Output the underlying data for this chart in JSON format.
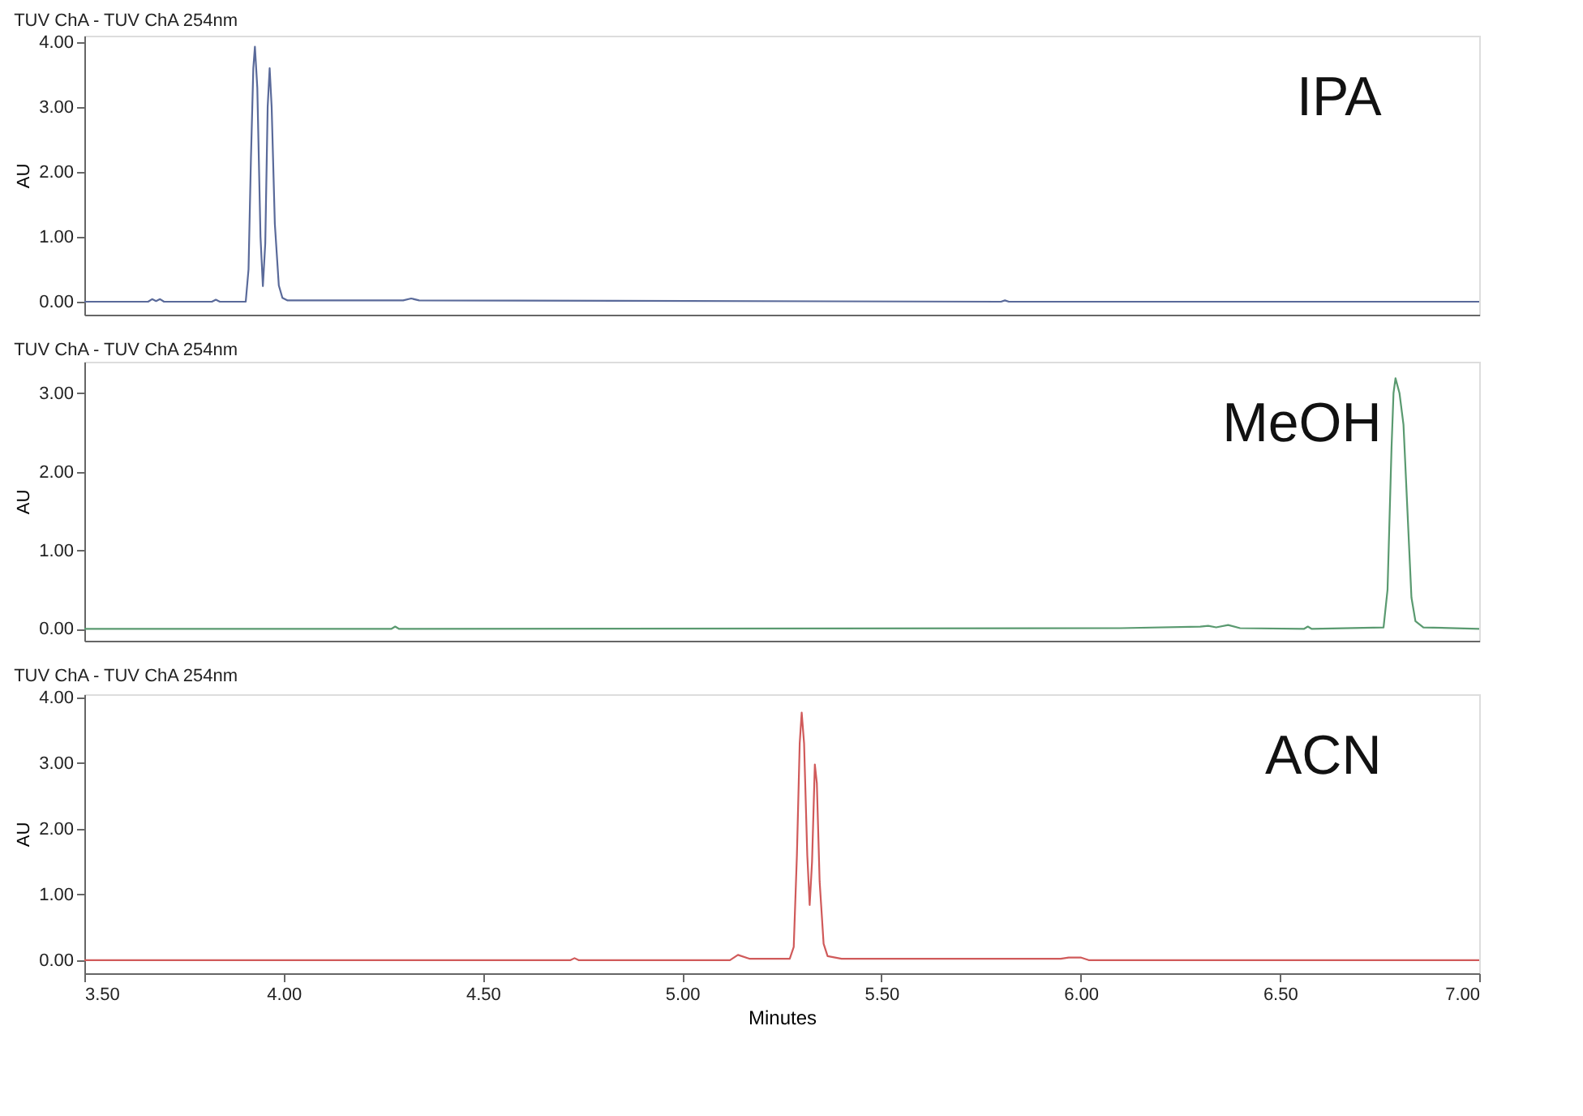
{
  "chart_data": [
    {
      "type": "line",
      "title": "TUV ChA - TUV ChA 254nm",
      "ylabel": "AU",
      "tick_labels": "y",
      "grid": false,
      "marker": "none",
      "line_style": "solid",
      "xlim": [
        3.5,
        7.0
      ],
      "ylim": [
        -0.2,
        4.1
      ],
      "yticks": [
        {
          "value": 0,
          "label": "0.00"
        },
        {
          "value": 1,
          "label": "1.00"
        },
        {
          "value": 2,
          "label": "2.00"
        },
        {
          "value": 3,
          "label": "3.00"
        },
        {
          "value": 4,
          "label": "4.00"
        }
      ],
      "series": [
        {
          "name": "IPA",
          "color": "#5a6a9a",
          "x": [
            3.5,
            3.66,
            3.67,
            3.68,
            3.69,
            3.7,
            3.82,
            3.83,
            3.84,
            3.905,
            3.912,
            3.918,
            3.924,
            3.928,
            3.934,
            3.942,
            3.948,
            3.954,
            3.96,
            3.965,
            3.97,
            3.978,
            3.988,
            3.997,
            4.01,
            4.3,
            4.32,
            4.34,
            5.8,
            5.81,
            5.82,
            7.0
          ],
          "values": [
            0.0,
            0.0,
            0.04,
            0.01,
            0.04,
            0.0,
            0.0,
            0.03,
            0.0,
            0.0,
            0.5,
            2.2,
            3.6,
            3.93,
            3.3,
            1.0,
            0.24,
            0.9,
            3.0,
            3.6,
            3.0,
            1.2,
            0.25,
            0.06,
            0.02,
            0.02,
            0.05,
            0.02,
            0.0,
            0.02,
            0.0,
            0.0
          ]
        }
      ]
    },
    {
      "type": "line",
      "title": "TUV ChA - TUV ChA 254nm",
      "ylabel": "AU",
      "tick_labels": "y",
      "grid": false,
      "marker": "none",
      "line_style": "solid",
      "xlim": [
        3.5,
        7.0
      ],
      "ylim": [
        -0.15,
        3.4
      ],
      "yticks": [
        {
          "value": 0,
          "label": "0.00"
        },
        {
          "value": 1,
          "label": "1.00"
        },
        {
          "value": 2,
          "label": "2.00"
        },
        {
          "value": 3,
          "label": "3.00"
        }
      ],
      "series": [
        {
          "name": "MeOH",
          "color": "#5a9a70",
          "x": [
            3.5,
            4.27,
            4.28,
            4.29,
            6.1,
            6.3,
            6.32,
            6.34,
            6.37,
            6.4,
            6.56,
            6.57,
            6.58,
            6.76,
            6.77,
            6.78,
            6.785,
            6.79,
            6.8,
            6.81,
            6.82,
            6.83,
            6.84,
            6.86,
            7.0
          ],
          "values": [
            0.0,
            0.0,
            0.03,
            0.0,
            0.01,
            0.03,
            0.04,
            0.02,
            0.05,
            0.01,
            0.0,
            0.03,
            0.0,
            0.02,
            0.5,
            2.3,
            3.0,
            3.19,
            3.0,
            2.6,
            1.5,
            0.4,
            0.1,
            0.02,
            0.0
          ]
        }
      ]
    },
    {
      "type": "line",
      "title": "TUV ChA - TUV ChA 254nm",
      "xlabel": "Minutes",
      "ylabel": "AU",
      "grid": false,
      "marker": "none",
      "line_style": "solid",
      "xlim": [
        3.5,
        7.0
      ],
      "ylim": [
        -0.2,
        4.05
      ],
      "xticks": [
        {
          "value": 3.5,
          "label": "3.50"
        },
        {
          "value": 4.0,
          "label": "4.00"
        },
        {
          "value": 4.5,
          "label": "4.50"
        },
        {
          "value": 5.0,
          "label": "5.00"
        },
        {
          "value": 5.5,
          "label": "5.50"
        },
        {
          "value": 6.0,
          "label": "6.00"
        },
        {
          "value": 6.5,
          "label": "6.50"
        },
        {
          "value": 7.0,
          "label": "7.00"
        }
      ],
      "yticks": [
        {
          "value": 0,
          "label": "0.00"
        },
        {
          "value": 1,
          "label": "1.00"
        },
        {
          "value": 2,
          "label": "2.00"
        },
        {
          "value": 3,
          "label": "3.00"
        },
        {
          "value": 4,
          "label": "4.00"
        }
      ],
      "series": [
        {
          "name": "ACN",
          "color": "#d05a5a",
          "x": [
            3.5,
            4.72,
            4.73,
            4.74,
            5.12,
            5.14,
            5.17,
            5.27,
            5.28,
            5.288,
            5.295,
            5.3,
            5.306,
            5.314,
            5.32,
            5.326,
            5.333,
            5.338,
            5.345,
            5.355,
            5.365,
            5.4,
            5.95,
            5.97,
            6.0,
            6.02,
            7.0
          ],
          "values": [
            0.0,
            0.0,
            0.03,
            0.0,
            0.0,
            0.08,
            0.02,
            0.02,
            0.2,
            1.6,
            3.3,
            3.77,
            3.3,
            1.6,
            0.84,
            1.5,
            2.98,
            2.7,
            1.2,
            0.25,
            0.06,
            0.02,
            0.02,
            0.04,
            0.04,
            0.0,
            0.0
          ]
        }
      ]
    }
  ]
}
